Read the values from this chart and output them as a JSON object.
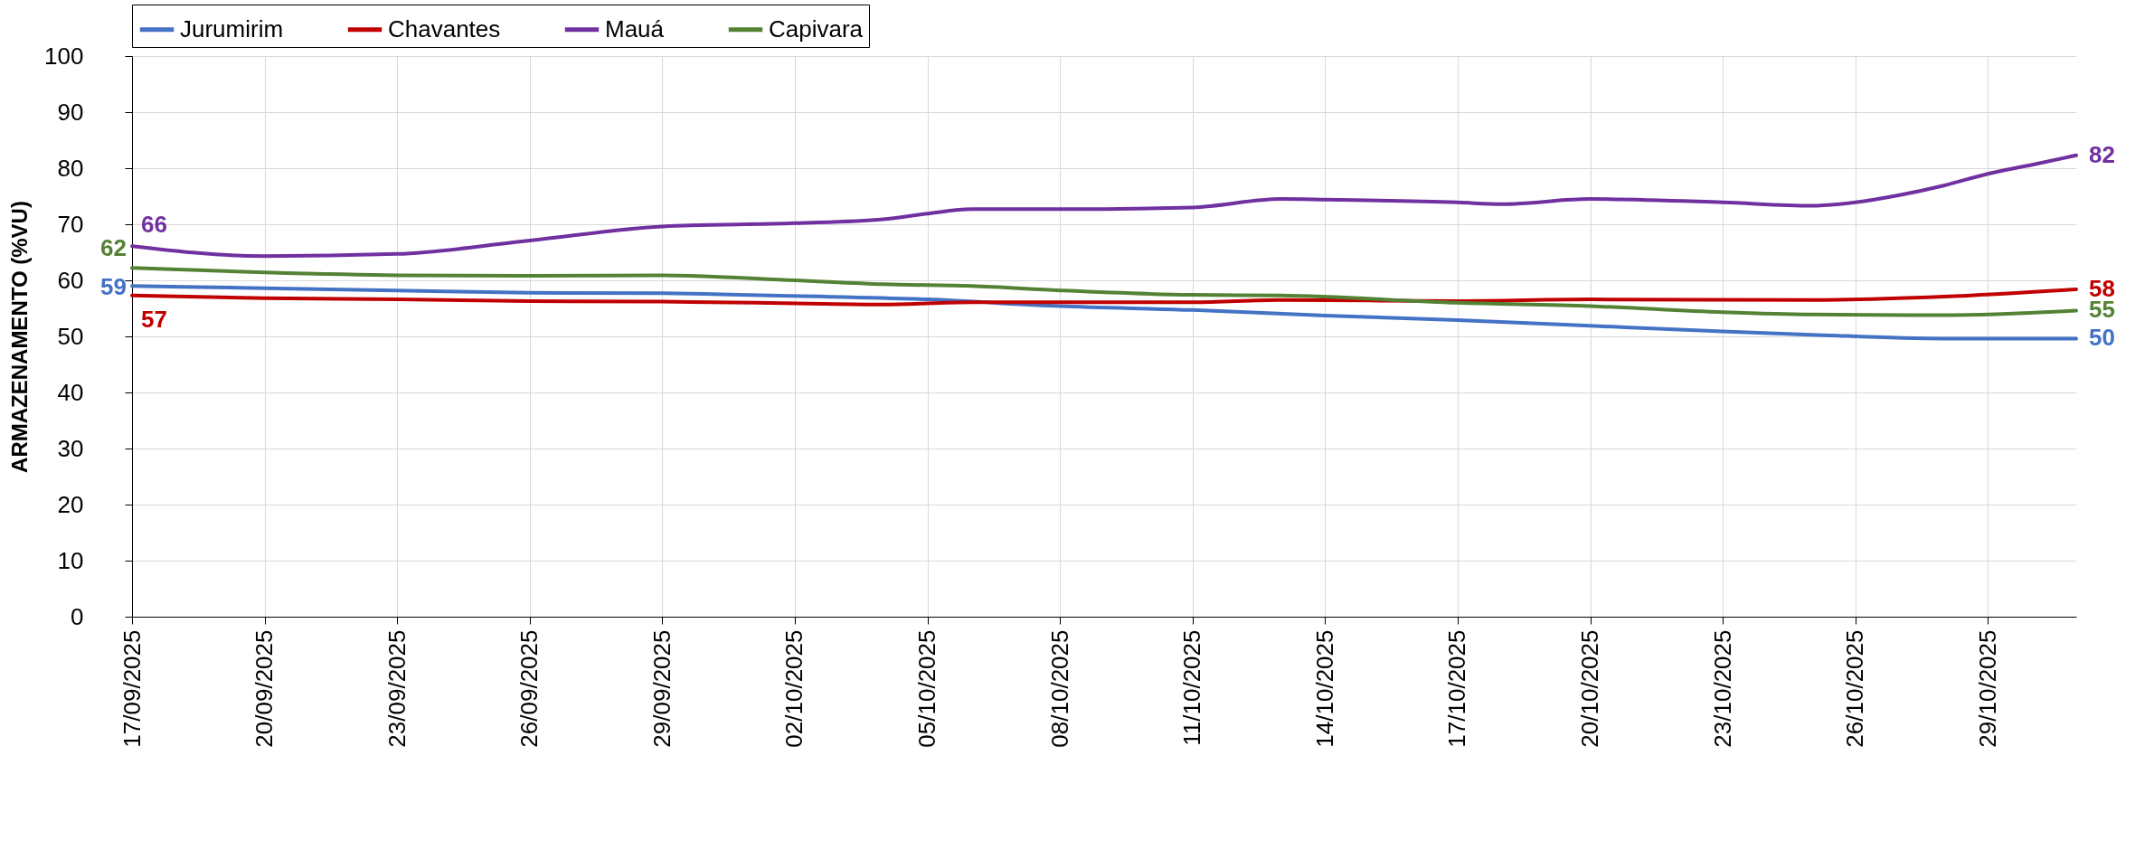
{
  "chart_data": {
    "type": "line",
    "ylabel": "ARMAZENAMENTO (%VU)",
    "xlim": [
      "2025-09-17",
      "2025-10-31"
    ],
    "xticks": [
      {
        "value": "2025-09-17",
        "label": "17/09/2025"
      },
      {
        "value": "2025-09-20",
        "label": "20/09/2025"
      },
      {
        "value": "2025-09-23",
        "label": "23/09/2025"
      },
      {
        "value": "2025-09-26",
        "label": "26/09/2025"
      },
      {
        "value": "2025-09-29",
        "label": "29/09/2025"
      },
      {
        "value": "2025-10-02",
        "label": "02/10/2025"
      },
      {
        "value": "2025-10-05",
        "label": "05/10/2025"
      },
      {
        "value": "2025-10-08",
        "label": "08/10/2025"
      },
      {
        "value": "2025-10-11",
        "label": "11/10/2025"
      },
      {
        "value": "2025-10-14",
        "label": "14/10/2025"
      },
      {
        "value": "2025-10-17",
        "label": "17/10/2025"
      },
      {
        "value": "2025-10-20",
        "label": "20/10/2025"
      },
      {
        "value": "2025-10-23",
        "label": "23/10/2025"
      },
      {
        "value": "2025-10-26",
        "label": "26/10/2025"
      },
      {
        "value": "2025-10-29",
        "label": "29/10/2025"
      }
    ],
    "ylim": [
      0,
      100
    ],
    "yticks": [
      0,
      10,
      20,
      30,
      40,
      50,
      60,
      70,
      80,
      90,
      100
    ],
    "grid": true,
    "legend": "top",
    "marker": "none",
    "line_style": "solid",
    "series": [
      {
        "name": "Jurumirim",
        "color": "#4472c4",
        "x": [
          "2025-09-17",
          "2025-09-20",
          "2025-09-23",
          "2025-09-26",
          "2025-09-29",
          "2025-10-02",
          "2025-10-05",
          "2025-10-08",
          "2025-10-11",
          "2025-10-14",
          "2025-10-17",
          "2025-10-20",
          "2025-10-23",
          "2025-10-25",
          "2025-10-28",
          "2025-10-31"
        ],
        "values": [
          59.0,
          58.6,
          58.2,
          57.8,
          57.7,
          57.2,
          56.6,
          55.4,
          54.7,
          53.7,
          52.9,
          51.9,
          50.9,
          50.3,
          49.6,
          49.6
        ],
        "value_labels": [
          "59",
          null,
          null,
          null,
          null,
          null,
          null,
          null,
          null,
          null,
          null,
          null,
          null,
          null,
          null,
          "50"
        ]
      },
      {
        "name": "Chavantes",
        "color": "#c00000",
        "x": [
          "2025-09-17",
          "2025-09-20",
          "2025-09-23",
          "2025-09-26",
          "2025-09-29",
          "2025-10-02",
          "2025-10-04",
          "2025-10-06",
          "2025-10-11",
          "2025-10-13",
          "2025-10-17",
          "2025-10-20",
          "2025-10-25",
          "2025-10-28",
          "2025-10-31"
        ],
        "values": [
          57.3,
          56.8,
          56.6,
          56.3,
          56.2,
          55.9,
          55.7,
          56.1,
          56.1,
          56.5,
          56.3,
          56.6,
          56.5,
          57.1,
          58.4
        ],
        "value_labels": [
          "57",
          null,
          null,
          null,
          null,
          null,
          null,
          null,
          null,
          null,
          null,
          null,
          null,
          null,
          "58"
        ]
      },
      {
        "name": "Mauá",
        "color": "#7030a0",
        "x": [
          "2025-09-17",
          "2025-09-20",
          "2025-09-23",
          "2025-09-26",
          "2025-09-29",
          "2025-10-02",
          "2025-10-04",
          "2025-10-05",
          "2025-10-06",
          "2025-10-08",
          "2025-10-11",
          "2025-10-13",
          "2025-10-14",
          "2025-10-17",
          "2025-10-18",
          "2025-10-20",
          "2025-10-23",
          "2025-10-25",
          "2025-10-26",
          "2025-10-27",
          "2025-10-28",
          "2025-10-29",
          "2025-10-30",
          "2025-10-31"
        ],
        "values": [
          66.1,
          64.3,
          64.7,
          67.1,
          69.6,
          70.2,
          70.9,
          71.9,
          72.7,
          72.7,
          73.0,
          74.5,
          74.4,
          73.9,
          73.6,
          74.5,
          73.9,
          73.3,
          73.9,
          75.2,
          76.9,
          79.0,
          80.6,
          82.3
        ],
        "value_labels": [
          "66",
          null,
          null,
          null,
          null,
          null,
          null,
          null,
          null,
          null,
          null,
          null,
          null,
          null,
          null,
          null,
          null,
          null,
          null,
          null,
          null,
          null,
          null,
          "82"
        ]
      },
      {
        "name": "Capivara",
        "color": "#548235",
        "x": [
          "2025-09-17",
          "2025-09-20",
          "2025-09-23",
          "2025-09-26",
          "2025-09-29",
          "2025-10-02",
          "2025-10-04",
          "2025-10-06",
          "2025-10-08",
          "2025-10-11",
          "2025-10-13",
          "2025-10-17",
          "2025-10-20",
          "2025-10-23",
          "2025-10-25",
          "2025-10-28",
          "2025-10-31"
        ],
        "values": [
          62.2,
          61.4,
          60.9,
          60.8,
          60.9,
          60.0,
          59.3,
          59.0,
          58.2,
          57.4,
          57.3,
          56.0,
          55.4,
          54.3,
          53.9,
          53.8,
          54.6
        ],
        "value_labels": [
          "62",
          null,
          null,
          null,
          null,
          null,
          null,
          null,
          null,
          null,
          null,
          null,
          null,
          null,
          null,
          null,
          "55"
        ]
      }
    ]
  }
}
